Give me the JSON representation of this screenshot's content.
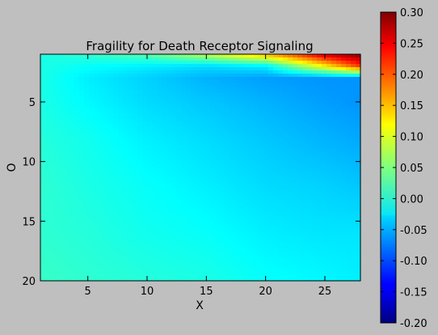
{
  "chart_data": {
    "type": "heatmap",
    "title": "Fragility for Death Receptor Signaling",
    "xlabel": "X",
    "ylabel": "O",
    "x_range": [
      1,
      28
    ],
    "y_range": [
      1,
      20
    ],
    "y_inverted": true,
    "x_ticks": [
      5,
      10,
      15,
      20,
      25
    ],
    "y_ticks": [
      5,
      10,
      15,
      20
    ],
    "colormap": "jet",
    "colorbar": {
      "min": -0.2,
      "max": 0.3,
      "ticks": [
        "0.30",
        "0.25",
        "0.20",
        "0.15",
        "0.10",
        "0.05",
        "0.00",
        "-0.05",
        "-0.10",
        "-0.15",
        "-0.20"
      ]
    },
    "value_estimates": {
      "description_rows": "approximate values at grid points; rows are O, columns are X",
      "x": [
        1,
        5,
        10,
        15,
        20,
        25,
        28
      ],
      "o": [
        1,
        2,
        3,
        5,
        8,
        12,
        16,
        20
      ],
      "z": [
        [
          0.0,
          0.01,
          0.03,
          0.08,
          0.15,
          0.26,
          0.3
        ],
        [
          0.0,
          -0.01,
          -0.02,
          -0.03,
          -0.02,
          0.12,
          0.21
        ],
        [
          0.0,
          -0.02,
          -0.035,
          -0.05,
          -0.06,
          -0.065,
          -0.065
        ],
        [
          0.0,
          -0.015,
          -0.03,
          -0.04,
          -0.05,
          -0.06,
          -0.065
        ],
        [
          0.005,
          -0.005,
          -0.02,
          -0.03,
          -0.04,
          -0.05,
          -0.055
        ],
        [
          0.01,
          0.0,
          -0.01,
          -0.02,
          -0.03,
          -0.035,
          -0.04
        ],
        [
          0.01,
          0.005,
          -0.005,
          -0.01,
          -0.02,
          -0.025,
          -0.025
        ],
        [
          0.015,
          0.01,
          0.005,
          0.0,
          -0.01,
          -0.015,
          -0.02
        ]
      ]
    }
  }
}
